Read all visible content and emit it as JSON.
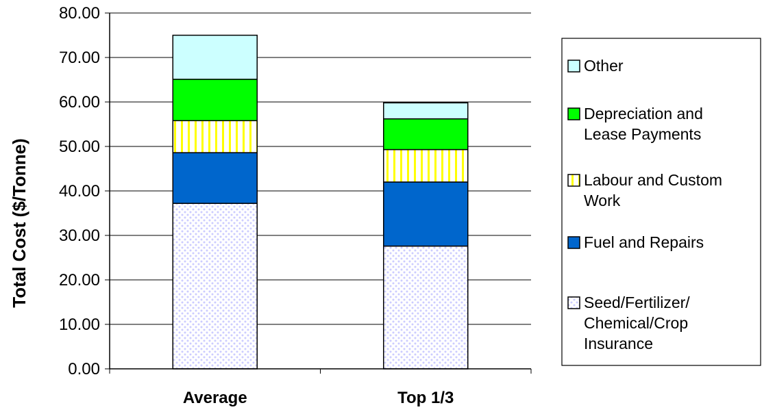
{
  "chart_data": {
    "type": "bar",
    "stacked": true,
    "categories": [
      "Average",
      "Top 1/3"
    ],
    "ylabel": "Total Cost ($/Tonne)",
    "xlabel": "",
    "ylim": [
      0,
      80
    ],
    "yticks": [
      "0.00",
      "10.00",
      "20.00",
      "30.00",
      "40.00",
      "50.00",
      "60.00",
      "70.00",
      "80.00"
    ],
    "grid": true,
    "legend_position": "right",
    "series": [
      {
        "name": "Seed/Fertilizer/ Chemical/Crop Insurance",
        "legend_lines": [
          "Seed/Fertilizer/",
          "Chemical/Crop",
          "Insurance"
        ],
        "values": [
          37.2,
          27.6
        ],
        "color": "#ccccff",
        "pattern": "dots"
      },
      {
        "name": "Fuel and Repairs",
        "legend_lines": [
          "Fuel and Repairs"
        ],
        "values": [
          11.4,
          14.4
        ],
        "color": "#0066cc",
        "pattern": "solid"
      },
      {
        "name": "Labour and Custom Work",
        "legend_lines": [
          "Labour and Custom",
          "Work"
        ],
        "values": [
          7.2,
          7.3
        ],
        "color": "#ffff00",
        "pattern": "vertical-stripes"
      },
      {
        "name": "Depreciation and Lease Payments",
        "legend_lines": [
          "Depreciation and",
          "Lease Payments"
        ],
        "values": [
          9.3,
          6.9
        ],
        "color": "#00ff00",
        "pattern": "solid"
      },
      {
        "name": "Other",
        "legend_lines": [
          "Other"
        ],
        "values": [
          9.9,
          3.6
        ],
        "color": "#ccffff",
        "pattern": "solid"
      }
    ]
  }
}
